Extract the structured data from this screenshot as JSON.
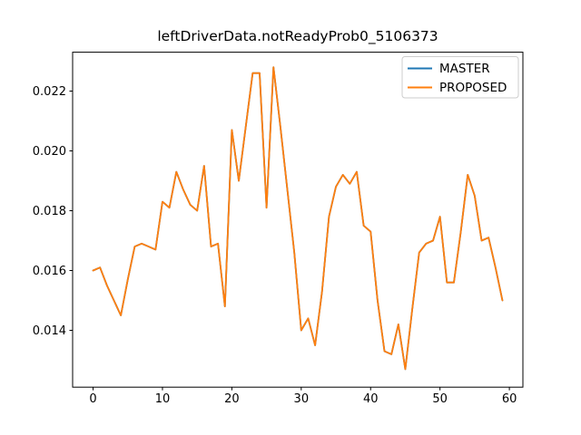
{
  "colors": {
    "master": "#1f77b4",
    "proposed": "#ff7f0e",
    "background": "#ffffff",
    "spine": "#000000",
    "legend_border": "#cccccc",
    "text": "#000000"
  },
  "legend": {
    "entries": [
      {
        "label": "MASTER",
        "color": "#1f77b4"
      },
      {
        "label": "PROPOSED",
        "color": "#ff7f0e"
      }
    ],
    "position": "upper right"
  },
  "chart_data": {
    "type": "line",
    "title": "leftDriverData.notReadyProb0_5106373",
    "xlabel": "",
    "ylabel": "",
    "grid": false,
    "legend_position": "upper right",
    "xticks": [
      0,
      10,
      20,
      30,
      40,
      50,
      60
    ],
    "yticks": [
      0.014,
      0.016,
      0.018,
      0.02,
      0.022
    ],
    "xlim": [
      -2.95,
      61.95
    ],
    "ylim": [
      0.0121,
      0.0233
    ],
    "x": [
      0,
      1,
      2,
      3,
      4,
      5,
      6,
      7,
      8,
      9,
      10,
      11,
      12,
      13,
      14,
      15,
      16,
      17,
      18,
      19,
      20,
      21,
      22,
      23,
      24,
      25,
      26,
      27,
      28,
      29,
      30,
      31,
      32,
      33,
      34,
      35,
      36,
      37,
      38,
      39,
      40,
      41,
      42,
      43,
      44,
      45,
      46,
      47,
      48,
      49,
      50,
      51,
      52,
      53,
      54,
      55,
      56,
      57,
      58,
      59
    ],
    "series": [
      {
        "name": "MASTER",
        "color": "#1f77b4",
        "values": [
          0.016,
          0.0161,
          0.0155,
          0.015,
          0.0145,
          0.0157,
          0.0168,
          0.0169,
          0.0168,
          0.0167,
          0.0183,
          0.0181,
          0.0193,
          0.0187,
          0.0182,
          0.018,
          0.0195,
          0.0168,
          0.0169,
          0.0148,
          0.0207,
          0.019,
          0.0208,
          0.0226,
          0.0226,
          0.0181,
          0.0228,
          0.0208,
          0.0187,
          0.0166,
          0.014,
          0.0144,
          0.0135,
          0.0153,
          0.0178,
          0.0188,
          0.0192,
          0.0189,
          0.0193,
          0.0175,
          0.0173,
          0.015,
          0.0133,
          0.0132,
          0.0142,
          0.0127,
          0.0147,
          0.0166,
          0.0169,
          0.017,
          0.0178,
          0.0156,
          0.0156,
          0.0173,
          0.0192,
          0.0185,
          0.017,
          0.0171,
          0.0161,
          0.015
        ]
      },
      {
        "name": "PROPOSED",
        "color": "#ff7f0e",
        "values": [
          0.016,
          0.0161,
          0.0155,
          0.015,
          0.0145,
          0.0157,
          0.0168,
          0.0169,
          0.0168,
          0.0167,
          0.0183,
          0.0181,
          0.0193,
          0.0187,
          0.0182,
          0.018,
          0.0195,
          0.0168,
          0.0169,
          0.0148,
          0.0207,
          0.019,
          0.0208,
          0.0226,
          0.0226,
          0.0181,
          0.0228,
          0.0208,
          0.0187,
          0.0166,
          0.014,
          0.0144,
          0.0135,
          0.0153,
          0.0178,
          0.0188,
          0.0192,
          0.0189,
          0.0193,
          0.0175,
          0.0173,
          0.015,
          0.0133,
          0.0132,
          0.0142,
          0.0127,
          0.0147,
          0.0166,
          0.0169,
          0.017,
          0.0178,
          0.0156,
          0.0156,
          0.0173,
          0.0192,
          0.0185,
          0.017,
          0.0171,
          0.0161,
          0.015
        ]
      }
    ]
  }
}
